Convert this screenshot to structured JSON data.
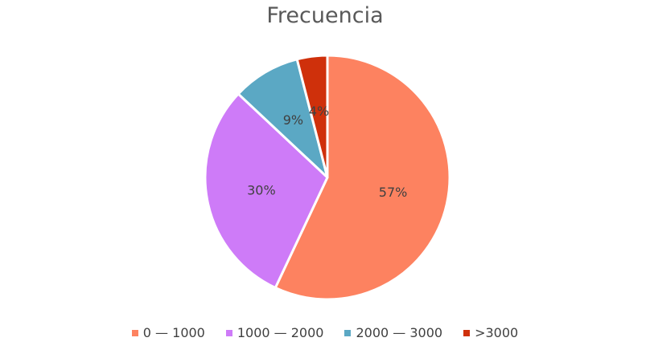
{
  "chart_data": {
    "type": "pie",
    "title": "Frecuencia",
    "categories": [
      "0 — 1000",
      "1000 — 2000",
      "2000 — 3000",
      ">3000"
    ],
    "values": [
      57,
      30,
      9,
      4
    ],
    "labels": [
      "57%",
      "30%",
      "9%",
      "4%"
    ],
    "colors": [
      "#fd8260",
      "#ce7bf8",
      "#5ba8c4",
      "#cf300b"
    ],
    "legend_position": "bottom"
  }
}
